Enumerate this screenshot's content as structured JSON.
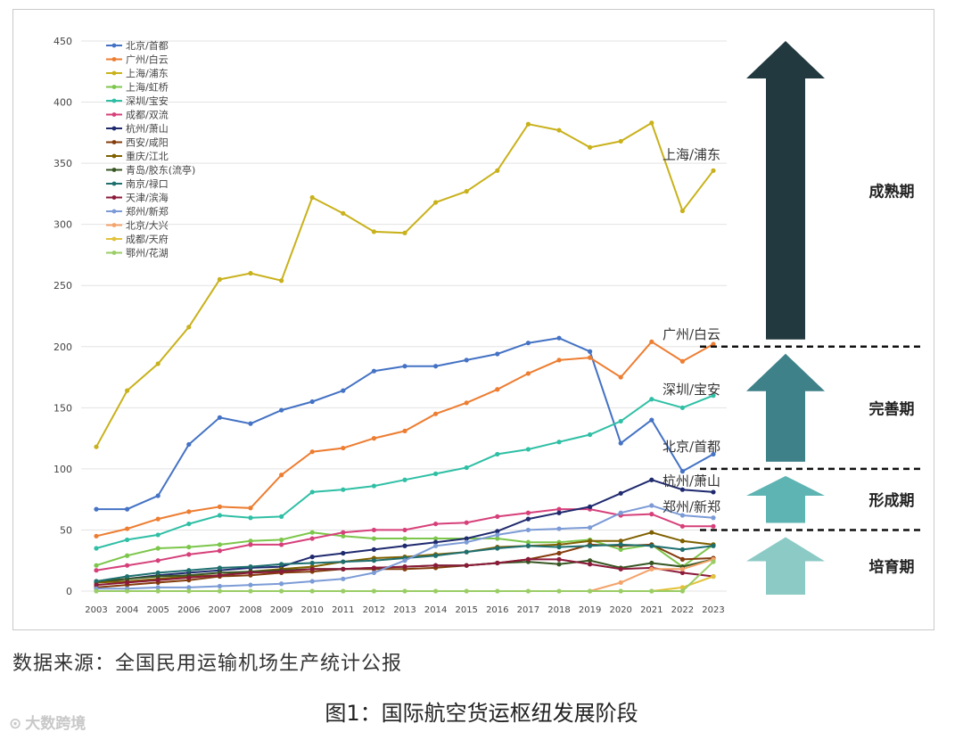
{
  "source_text": "数据来源：全国民用运输机场生产统计公报",
  "caption": "图1：国际航空货运枢纽发展阶段",
  "watermark": "大数跨境",
  "colors": {
    "arrow_mature": "#22393f",
    "arrow_improve": "#3e8189",
    "arrow_form": "#5db4b2",
    "arrow_nurture": "#8bcac5",
    "grid": "#e3e3e3",
    "axis_text": "#444444"
  },
  "stages": [
    {
      "label": "成熟期",
      "color": "#22393f",
      "from": 200,
      "to": 450
    },
    {
      "label": "完善期",
      "color": "#3e8189",
      "from": 100,
      "to": 200
    },
    {
      "label": "形成期",
      "color": "#5db4b2",
      "from": 50,
      "to": 100
    },
    {
      "label": "培育期",
      "color": "#8bcac5",
      "from": 0,
      "to": 50
    }
  ],
  "stage_boundaries": [
    200,
    100,
    50
  ],
  "chart_data": {
    "type": "line",
    "title": "",
    "xlabel": "",
    "ylabel": "",
    "ylim": [
      0,
      450
    ],
    "yticks": [
      0,
      50,
      100,
      150,
      200,
      250,
      300,
      350,
      400,
      450
    ],
    "grid": true,
    "legend_position": "top-left",
    "categories": [
      "2003",
      "2004",
      "2005",
      "2006",
      "2007",
      "2008",
      "2009",
      "2010",
      "2011",
      "2012",
      "2013",
      "2014",
      "2015",
      "2016",
      "2017",
      "2018",
      "2019",
      "2020",
      "2021",
      "2022",
      "2023"
    ],
    "series": [
      {
        "name": "北京/首都",
        "color": "#4472c4",
        "values": [
          67,
          67,
          78,
          120,
          142,
          137,
          148,
          155,
          164,
          180,
          184,
          184,
          189,
          194,
          203,
          207,
          196,
          121,
          140,
          98,
          112
        ]
      },
      {
        "name": "广州/白云",
        "color": "#ed7d31",
        "values": [
          45,
          51,
          59,
          65,
          69,
          68,
          95,
          114,
          117,
          125,
          131,
          145,
          154,
          165,
          178,
          189,
          191,
          175,
          204,
          188,
          202
        ]
      },
      {
        "name": "上海/浦东",
        "color": "#c9b11b",
        "values": [
          118,
          164,
          186,
          216,
          255,
          260,
          254,
          322,
          309,
          294,
          293,
          318,
          327,
          344,
          382,
          377,
          363,
          368,
          383,
          311,
          344
        ]
      },
      {
        "name": "上海/虹桥",
        "color": "#7cc64b",
        "values": [
          21,
          29,
          35,
          36,
          38,
          41,
          42,
          48,
          45,
          43,
          43,
          43,
          43,
          43,
          40,
          40,
          42,
          34,
          38,
          20,
          38
        ]
      },
      {
        "name": "深圳/宝安",
        "color": "#2fbfa5",
        "values": [
          35,
          42,
          46,
          55,
          62,
          60,
          61,
          81,
          83,
          86,
          91,
          96,
          101,
          112,
          116,
          122,
          128,
          139,
          157,
          150,
          160
        ]
      },
      {
        "name": "成都/双流",
        "color": "#d6407a",
        "values": [
          17,
          21,
          25,
          30,
          33,
          38,
          38,
          43,
          48,
          50,
          50,
          55,
          56,
          61,
          64,
          67,
          67,
          62,
          63,
          53,
          53
        ]
      },
      {
        "name": "杭州/萧山",
        "color": "#1f2a6e",
        "values": [
          7,
          10,
          13,
          15,
          17,
          19,
          20,
          28,
          31,
          34,
          37,
          40,
          43,
          49,
          59,
          64,
          69,
          80,
          91,
          83,
          81
        ]
      },
      {
        "name": "西安/咸阳",
        "color": "#843c0c",
        "values": [
          3,
          5,
          7,
          9,
          12,
          13,
          15,
          16,
          18,
          18,
          18,
          19,
          21,
          23,
          26,
          31,
          38,
          37,
          38,
          26,
          27
        ]
      },
      {
        "name": "重庆/江北",
        "color": "#7f6000",
        "values": [
          7,
          8,
          10,
          12,
          13,
          16,
          18,
          20,
          24,
          27,
          28,
          30,
          32,
          36,
          37,
          38,
          41,
          41,
          48,
          41,
          38
        ]
      },
      {
        "name": "青岛/胶东(流亭)",
        "color": "#375623",
        "values": [
          8,
          10,
          12,
          13,
          15,
          16,
          17,
          18,
          18,
          19,
          20,
          21,
          21,
          23,
          24,
          22,
          25,
          19,
          23,
          20,
          26
        ]
      },
      {
        "name": "南京/禄口",
        "color": "#1f6f6f",
        "values": [
          8,
          12,
          15,
          17,
          19,
          20,
          22,
          23,
          24,
          25,
          27,
          29,
          32,
          35,
          37,
          36,
          37,
          38,
          37,
          34,
          37
        ]
      },
      {
        "name": "天津/滨海",
        "color": "#8b1a3a",
        "values": [
          5,
          7,
          9,
          11,
          13,
          15,
          16,
          18,
          18,
          19,
          20,
          21,
          21,
          23,
          26,
          26,
          22,
          18,
          19,
          15,
          12
        ]
      },
      {
        "name": "郑州/新郑",
        "color": "#7c9bd6",
        "values": [
          2,
          2,
          3,
          3,
          4,
          5,
          6,
          8,
          10,
          15,
          25,
          37,
          40,
          46,
          50,
          51,
          52,
          64,
          70,
          62,
          60
        ]
      },
      {
        "name": "北京/大兴",
        "color": "#f4a36a",
        "values": [
          null,
          null,
          null,
          null,
          null,
          null,
          null,
          null,
          null,
          null,
          null,
          null,
          null,
          null,
          null,
          null,
          0,
          7,
          18,
          18,
          26
        ]
      },
      {
        "name": "成都/天府",
        "color": "#e2c23a",
        "values": [
          null,
          null,
          null,
          null,
          null,
          null,
          null,
          null,
          null,
          null,
          null,
          null,
          null,
          null,
          null,
          null,
          null,
          null,
          0,
          3,
          12
        ]
      },
      {
        "name": "鄂州/花湖",
        "color": "#9acd66",
        "values": [
          0,
          0,
          0,
          0,
          0,
          0,
          0,
          0,
          0,
          0,
          0,
          0,
          0,
          0,
          0,
          0,
          0,
          0,
          0,
          0,
          24
        ]
      }
    ],
    "end_labels": [
      {
        "series": "上海/浦东",
        "text": "上海/浦东",
        "at": 357
      },
      {
        "series": "广州/白云",
        "text": "广州/白云",
        "at": 210
      },
      {
        "series": "深圳/宝安",
        "text": "深圳/宝安",
        "at": 165
      },
      {
        "series": "北京/首都",
        "text": "北京/首都",
        "at": 118
      },
      {
        "series": "杭州/萧山",
        "text": "杭州/萧山",
        "at": 90
      },
      {
        "series": "郑州/新郑",
        "text": "郑州/新郑",
        "at": 69
      }
    ]
  }
}
